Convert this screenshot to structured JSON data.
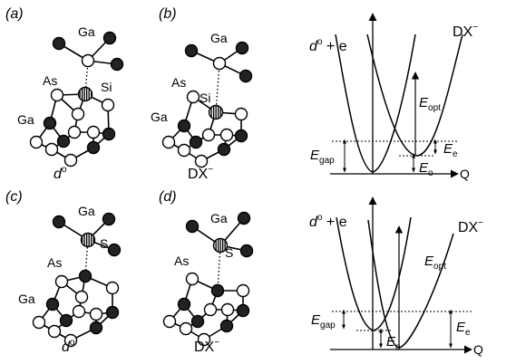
{
  "panels": [
    {
      "letter": "a",
      "top_atom": "Ga",
      "center_atom": "Si",
      "left_as": "As",
      "left_ga": "Ga",
      "state": "d",
      "state_sup": "o"
    },
    {
      "letter": "b",
      "top_atom": "Ga",
      "center_atom": "Si",
      "left_as": "As",
      "left_ga": "Ga",
      "state": "DX",
      "state_sup": "−"
    },
    {
      "letter": "c",
      "top_atom": "Ga",
      "center_atom": "S",
      "left_as": "As",
      "left_ga": "Ga",
      "state": "d",
      "state_sup": "o"
    },
    {
      "letter": "d",
      "top_atom": "Ga",
      "center_atom": "S",
      "left_as": "As",
      "left_ga": "Ga",
      "state": "DX",
      "state_sup": "−"
    }
  ],
  "energy_diagrams": [
    {
      "left_curve": {
        "base": "d",
        "sup": "o",
        "rest": " + e"
      },
      "right_curve": {
        "base": "DX",
        "sup": "−"
      },
      "e_opt": {
        "base": "E",
        "sub": "opt"
      },
      "e_e": {
        "base": "E",
        "sub": "e"
      },
      "e_gap": {
        "base": "E",
        "sub": "gap"
      },
      "e_o": {
        "base": "E",
        "sub": "o"
      },
      "axis_label": "Q"
    },
    {
      "left_curve": {
        "base": "d",
        "sup": "o",
        "rest": " + e"
      },
      "right_curve": {
        "base": "DX",
        "sup": "−"
      },
      "e_opt": {
        "base": "E",
        "sub": "opt"
      },
      "e_e": {
        "base": "E",
        "sub": "e"
      },
      "e_gap": {
        "base": "E",
        "sub": "gap"
      },
      "e_o": {
        "base": "E",
        "sub": "o"
      },
      "axis_label": "Q"
    }
  ]
}
